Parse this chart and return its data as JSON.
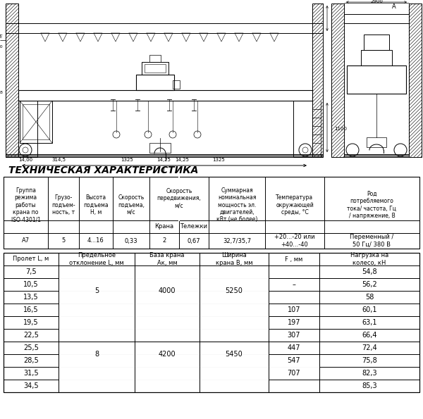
{
  "title": "ТЕХНИЧЕСКАЯ ХАРАКТЕРИСТИКА",
  "table1_data": [
    "А7",
    "5",
    "4...16",
    "0,33",
    "2",
    "0,67",
    "32,7/35,7",
    "+20...-20 или\n+40...-40",
    "Переменный /\n50 Гц/ 380 В"
  ],
  "table2_headers": [
    "Пролет L, м",
    "Предельное\nотклонение L, мм",
    "База крана\nАк, мм",
    "Ширина\nкрана В, мм",
    "F , мм",
    "Нагрузка на\nколесо, кН"
  ],
  "table2_rows": [
    [
      "7,5",
      "54,8"
    ],
    [
      "10,5",
      "56,2"
    ],
    [
      "13,5",
      "58"
    ],
    [
      "16,5",
      "60,1"
    ],
    [
      "19,5",
      "63,1"
    ],
    [
      "22,5",
      "66,4"
    ],
    [
      "25,5",
      "72,4"
    ],
    [
      "28,5",
      "75,8"
    ],
    [
      "31,5",
      "82,3"
    ],
    [
      "34,5",
      "85,3"
    ]
  ],
  "f_vals": [
    "",
    "–",
    "",
    "107",
    "197",
    "307",
    "447",
    "547",
    "707",
    ""
  ],
  "f_merge_89": true,
  "bg_color": "#ffffff",
  "line_color": "#000000",
  "text_color": "#000000"
}
